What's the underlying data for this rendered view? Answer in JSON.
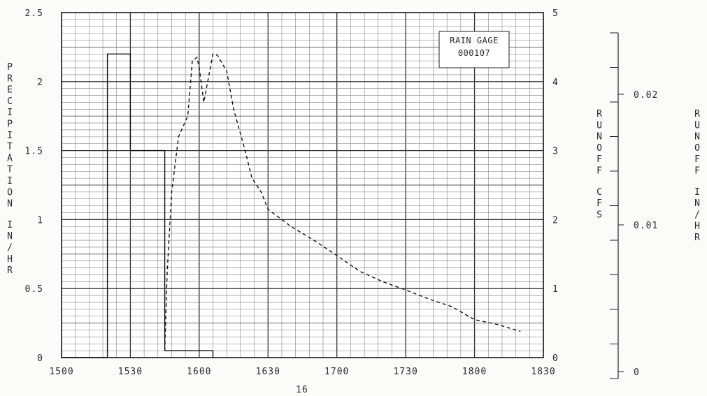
{
  "chart_data": {
    "type": "line",
    "x_ticks": [
      "1500",
      "1530",
      "1600",
      "1630",
      "1700",
      "1730",
      "1800",
      "1830"
    ],
    "y_left_label": "PRECIPITATION IN/HR",
    "y_left_ticks": [
      "0",
      "0.5",
      "1",
      "1.5",
      "2",
      "2.5"
    ],
    "y_left_ylim": [
      0,
      2.5
    ],
    "y_right_label": "RUNOFF CFS",
    "y_right_ticks": [
      "0",
      "1",
      "2",
      "3",
      "4",
      "5"
    ],
    "y_right_ylim": [
      0,
      5
    ],
    "y_right2_label": "RUNOFF IN/HR",
    "y_right2_ticks": [
      "0",
      "0.01",
      "0.02"
    ],
    "x_footer": "16",
    "annotation": [
      "RAIN GAGE",
      "000107"
    ],
    "grid": true,
    "series": [
      {
        "style": "solid-step",
        "axis": "left",
        "x_minutes": [
          0,
          20,
          20,
          30,
          30,
          45,
          45,
          62,
          62,
          66,
          66
        ],
        "y": [
          0,
          0,
          2.2,
          2.2,
          1.5,
          1.5,
          0.05,
          0.05,
          0.05,
          0.05,
          0
        ]
      },
      {
        "style": "dashed",
        "axis": "right",
        "x_minutes": [
          45,
          46,
          48,
          51,
          55,
          57,
          59,
          60,
          62,
          66,
          68,
          72,
          75,
          80,
          83,
          87,
          90,
          100,
          110,
          120,
          130,
          140,
          150,
          160,
          170,
          180,
          190,
          200
        ],
        "y": [
          0.1,
          1.2,
          2.4,
          3.2,
          3.5,
          4.3,
          4.35,
          4.2,
          3.7,
          4.4,
          4.38,
          4.15,
          3.6,
          3.0,
          2.6,
          2.4,
          2.15,
          1.9,
          1.7,
          1.48,
          1.25,
          1.1,
          0.98,
          0.85,
          0.74,
          0.55,
          0.48,
          0.38
        ]
      }
    ]
  }
}
